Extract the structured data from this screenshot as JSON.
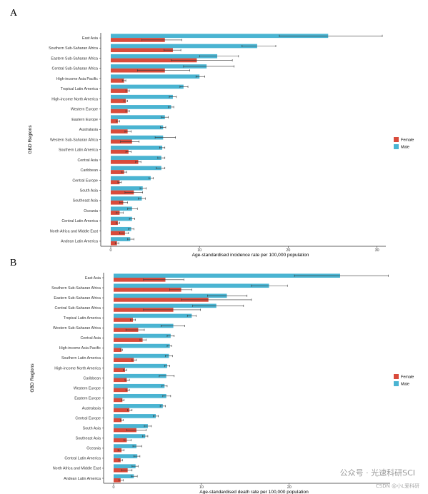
{
  "colors": {
    "female": "#D94B3B",
    "male": "#4AB4D2",
    "axis": "#333333",
    "error": "#333333"
  },
  "watermark": {
    "account": "公众号 · 光速科研SCI",
    "source": "CSDN @小L爱科研"
  },
  "chart_data": [
    {
      "panel": "A",
      "type": "bar",
      "orientation": "horizontal",
      "xlabel": "Age-standardised incidence rate per 100,000 population",
      "ylabel": "GBD Regions",
      "xlim": [
        0,
        31
      ],
      "xticks": [
        0,
        10,
        20,
        30
      ],
      "legend": {
        "position": "right",
        "entries": [
          "Female",
          "Male"
        ]
      },
      "categories": [
        "East Asia",
        "Southern Sub-Saharan Africa",
        "Eastern Sub-Saharan Africa",
        "Central Sub-Saharan Africa",
        "High-income Asia Pacific",
        "Tropical Latin America",
        "High-income North America",
        "Western Europe",
        "Eastern Europe",
        "Australasia",
        "Western Sub-Saharan Africa",
        "Southern Latin America",
        "Central Asia",
        "Caribbean",
        "Central Europe",
        "South Asia",
        "Southeast Asia",
        "Oceania",
        "Central Latin America",
        "North Africa and Middle East",
        "Andean Latin America"
      ],
      "series": [
        {
          "name": "Male",
          "values": [
            24.5,
            16.5,
            12.0,
            10.8,
            10.0,
            8.2,
            7.0,
            6.8,
            6.1,
            5.9,
            5.9,
            5.8,
            5.7,
            5.7,
            4.5,
            3.6,
            3.5,
            2.4,
            2.4,
            2.3,
            2.2
          ],
          "err_low": [
            19.0,
            14.8,
            10.0,
            8.2,
            9.6,
            7.8,
            6.6,
            6.5,
            5.7,
            5.6,
            5.0,
            5.5,
            5.3,
            5.1,
            4.3,
            3.3,
            3.1,
            1.9,
            2.1,
            2.0,
            1.9
          ],
          "err_high": [
            30.6,
            18.6,
            14.4,
            13.9,
            10.6,
            8.7,
            7.4,
            7.1,
            6.5,
            6.2,
            7.3,
            6.1,
            6.1,
            6.1,
            4.8,
            4.0,
            3.9,
            3.0,
            2.7,
            2.6,
            2.6
          ]
        },
        {
          "name": "Female",
          "values": [
            6.1,
            7.0,
            9.7,
            6.1,
            1.5,
            1.9,
            1.7,
            1.9,
            0.8,
            1.9,
            2.4,
            2.0,
            3.1,
            1.5,
            1.0,
            2.6,
            1.4,
            1.0,
            0.8,
            1.6,
            0.7
          ],
          "err_low": [
            3.5,
            6.0,
            6.8,
            3.0,
            1.3,
            1.7,
            1.5,
            1.7,
            0.6,
            1.6,
            1.1,
            1.7,
            2.8,
            1.2,
            0.8,
            1.6,
            1.0,
            0.6,
            0.6,
            1.0,
            0.5
          ],
          "err_high": [
            8.0,
            7.9,
            13.7,
            8.9,
            1.7,
            2.1,
            1.9,
            2.1,
            1.0,
            2.3,
            3.2,
            2.3,
            3.4,
            1.8,
            1.2,
            3.6,
            1.9,
            1.4,
            1.0,
            2.0,
            0.9
          ]
        }
      ]
    },
    {
      "panel": "B",
      "type": "bar",
      "orientation": "horizontal",
      "xlabel": "Age-standardised death rate per 100,000 population",
      "ylabel": "GBD Regions",
      "xlim": [
        0,
        31.5
      ],
      "xticks": [
        0,
        10,
        20
      ],
      "legend": {
        "position": "right",
        "entries": [
          "Female",
          "Male"
        ]
      },
      "categories": [
        "East Asia",
        "Southern Sub-Saharan Africa",
        "Eastern Sub-Saharan Africa",
        "Central Sub-Saharan Africa",
        "Tropical Latin America",
        "Western Sub-Saharan Africa",
        "Central Asia",
        "High-income Asia Pacific",
        "Southern Latin America",
        "High-income North America",
        "Caribbean",
        "Western Europe",
        "Eastern Europe",
        "Australasia",
        "Central Europe",
        "South Asia",
        "Southeast Asia",
        "Oceania",
        "Central Latin America",
        "North Africa and Middle East",
        "Andean Latin America"
      ],
      "series": [
        {
          "name": "Male",
          "values": [
            25.8,
            17.7,
            12.9,
            11.7,
            8.9,
            6.8,
            6.5,
            6.4,
            6.3,
            6.1,
            6.0,
            5.8,
            6.0,
            5.6,
            4.8,
            3.9,
            3.6,
            2.6,
            2.7,
            2.5,
            2.3
          ],
          "err_low": [
            20.6,
            15.7,
            10.7,
            9.0,
            8.4,
            5.4,
            6.1,
            6.1,
            5.9,
            5.8,
            5.2,
            5.5,
            5.6,
            5.3,
            4.5,
            3.5,
            3.3,
            2.2,
            2.3,
            2.1,
            2.0
          ],
          "err_high": [
            31.3,
            19.8,
            15.2,
            14.8,
            9.4,
            8.1,
            6.9,
            6.6,
            6.7,
            6.4,
            6.9,
            6.1,
            6.5,
            5.9,
            5.1,
            4.3,
            3.9,
            3.2,
            3.0,
            2.8,
            2.7
          ]
        },
        {
          "name": "Female",
          "values": [
            5.9,
            7.7,
            10.8,
            6.8,
            2.2,
            2.8,
            3.3,
            0.9,
            2.3,
            1.3,
            1.5,
            1.6,
            1.0,
            1.8,
            0.9,
            2.6,
            1.5,
            0.9,
            0.8,
            1.6,
            0.8
          ],
          "err_low": [
            3.4,
            6.4,
            7.7,
            3.4,
            1.9,
            1.4,
            3.0,
            0.8,
            2.1,
            1.1,
            1.3,
            1.4,
            0.9,
            1.6,
            0.8,
            1.5,
            1.2,
            0.5,
            0.6,
            0.9,
            0.6
          ],
          "err_high": [
            8.0,
            8.9,
            15.7,
            9.9,
            2.5,
            3.5,
            3.7,
            1.0,
            2.6,
            1.5,
            1.8,
            1.8,
            1.2,
            2.1,
            1.1,
            3.7,
            2.0,
            1.2,
            1.0,
            2.1,
            1.1
          ]
        }
      ]
    }
  ]
}
